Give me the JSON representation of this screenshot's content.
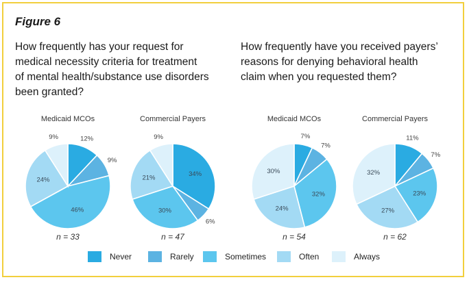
{
  "figure_label": "Figure 6",
  "questions": {
    "left": [
      "How frequently has your request for",
      "medical necessity criteria for treatment",
      "of mental health/substance use disorders",
      "been granted?"
    ],
    "right": [
      "How frequently have you received payers’",
      "reasons for denying behavioral health",
      "claim when you requested them?"
    ]
  },
  "colors": {
    "Never": "#2aabe2",
    "Rarely": "#5cb3e2",
    "Sometimes": "#5cc6ee",
    "Often": "#a3daf4",
    "Always": "#ddf1fb",
    "border": "#f2cf3c"
  },
  "chart_data": [
    {
      "type": "pie",
      "question": "left",
      "title": "Medicaid MCOs",
      "n_label": "n = 33",
      "categories": [
        "Never",
        "Rarely",
        "Sometimes",
        "Often",
        "Always"
      ],
      "values": [
        12,
        9,
        46,
        24,
        9
      ],
      "labels": [
        "12%",
        "9%",
        "46%",
        "24%",
        "9%"
      ]
    },
    {
      "type": "pie",
      "question": "left",
      "title": "Commercial Payers",
      "n_label": "n = 47",
      "categories": [
        "Never",
        "Rarely",
        "Sometimes",
        "Often",
        "Always"
      ],
      "values": [
        34,
        6,
        30,
        21,
        9
      ],
      "labels": [
        "34%",
        "6%",
        "30%",
        "21%",
        "9%"
      ]
    },
    {
      "type": "pie",
      "question": "right",
      "title": "Medicaid MCOs",
      "n_label": "n = 54",
      "categories": [
        "Never",
        "Rarely",
        "Sometimes",
        "Often",
        "Always"
      ],
      "values": [
        7,
        7,
        32,
        24,
        30
      ],
      "labels": [
        "7%",
        "7%",
        "32%",
        "24%",
        "30%"
      ]
    },
    {
      "type": "pie",
      "question": "right",
      "title": "Commercial Payers",
      "n_label": "n = 62",
      "categories": [
        "Never",
        "Rarely",
        "Sometimes",
        "Often",
        "Always"
      ],
      "values": [
        11,
        7,
        23,
        27,
        32
      ],
      "labels": [
        "11%",
        "7%",
        "23%",
        "27%",
        "32%"
      ]
    }
  ],
  "legend": [
    "Never",
    "Rarely",
    "Sometimes",
    "Often",
    "Always"
  ]
}
